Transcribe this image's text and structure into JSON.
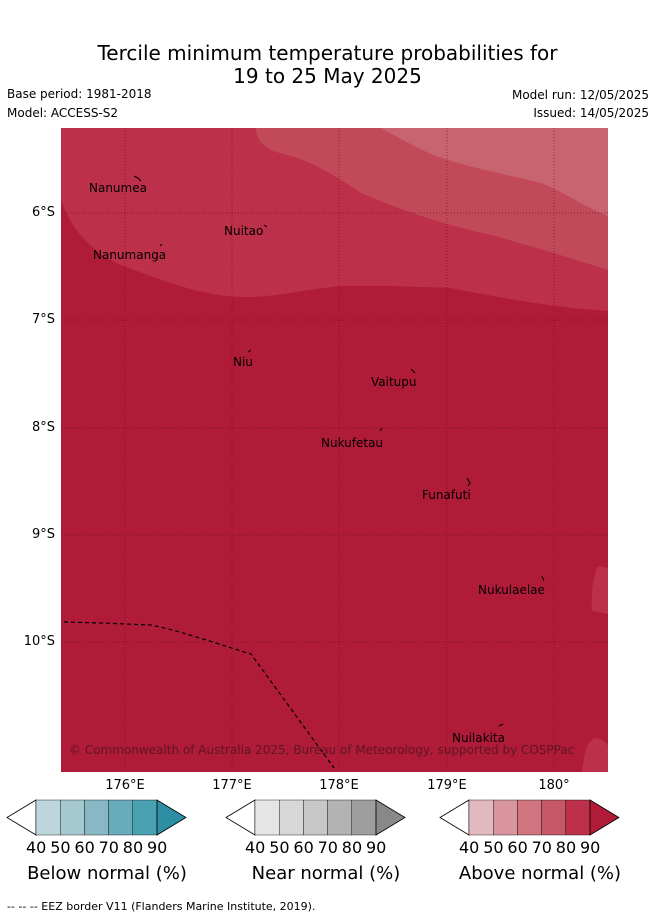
{
  "title_line1": "Tercile minimum temperature probabilities for",
  "title_line2": "19 to 25 May 2025",
  "base_period": "Base period: 1981-2018",
  "model": "Model: ACCESS-S2",
  "model_run": "Model run: 12/05/2025",
  "issued": "Issued: 14/05/2025",
  "latitude_labels": [
    "6°S",
    "7°S",
    "8°S",
    "9°S",
    "10°S"
  ],
  "longitude_labels": [
    "176°E",
    "177°E",
    "178°E",
    "179°E",
    "180°"
  ],
  "places": [
    "Nanumea",
    "Nuitao",
    "Nanumanga",
    "Niu",
    "Vaitupu",
    "Nukufetau",
    "Funafuti",
    "Nukulaelae",
    "Nuilakita"
  ],
  "copyright": "© Commonwealth of Australia 2025, Bureau of Meteorology, supported by COSPPac",
  "colorbars": [
    {
      "title": "Below normal (%)",
      "ticks": [
        "40",
        "50",
        "60",
        "70",
        "80",
        "90"
      ],
      "colors": [
        "#bed5dc",
        "#a6c8cf",
        "#88b8c3",
        "#68abba",
        "#48a0b1",
        "#2e8ea3"
      ]
    },
    {
      "title": "Near normal (%)",
      "ticks": [
        "40",
        "50",
        "60",
        "70",
        "80",
        "90"
      ],
      "colors": [
        "#e5e5e5",
        "#d7d7d7",
        "#c7c7c7",
        "#b3b3b3",
        "#9e9e9e",
        "#888888"
      ]
    },
    {
      "title": "Above normal (%)",
      "ticks": [
        "40",
        "50",
        "60",
        "70",
        "80",
        "90"
      ],
      "colors": [
        "#e3b9c0",
        "#d9959e",
        "#d0757f",
        "#c55766",
        "#bc3049",
        "#b01c38"
      ]
    }
  ],
  "footer": "--  --  -- EEZ border V11 (Flanders Marine Institute, 2019).",
  "map_colors": {
    "above_90": "#b01c38",
    "above_80": "#bc3049",
    "above_70": "#c24a58",
    "above_60": "#c8646f"
  }
}
